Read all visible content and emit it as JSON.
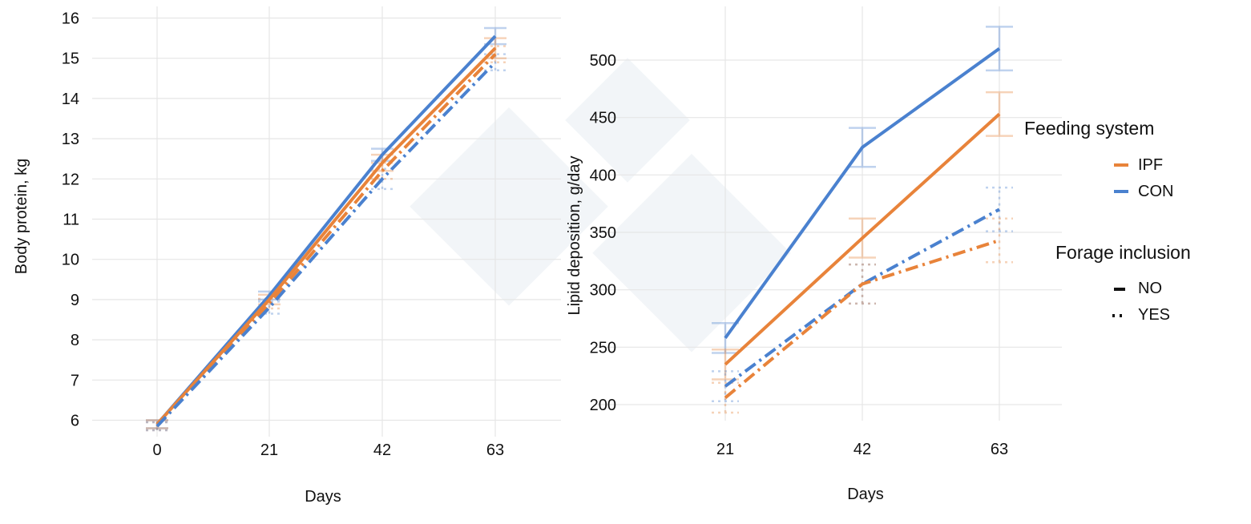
{
  "colors": {
    "IPF": "#e8833a",
    "CON": "#4a81cf",
    "grid": "#e6e6e6"
  },
  "chart_data": [
    {
      "type": "line",
      "xlabel": "Days",
      "ylabel": "Body protein, kg",
      "x": [
        0,
        21,
        42,
        63
      ],
      "x_ticks": [
        "0",
        "21",
        "42",
        "63"
      ],
      "y_ticks": [
        "6",
        "7",
        "8",
        "9",
        "10",
        "11",
        "12",
        "13",
        "14",
        "15",
        "16"
      ],
      "ylim": [
        6,
        16
      ],
      "grid": true,
      "series": [
        {
          "feeding": "CON",
          "forage": "NO",
          "values": [
            5.9,
            9.1,
            12.6,
            15.55
          ],
          "err": [
            0.1,
            0.1,
            0.15,
            0.2
          ]
        },
        {
          "feeding": "IPF",
          "forage": "NO",
          "values": [
            5.9,
            9.0,
            12.4,
            15.25
          ],
          "err": [
            0.1,
            0.12,
            0.2,
            0.25
          ]
        },
        {
          "feeding": "IPF",
          "forage": "YES",
          "values": [
            5.85,
            8.9,
            12.2,
            15.1
          ],
          "err": [
            0.1,
            0.12,
            0.2,
            0.2
          ]
        },
        {
          "feeding": "CON",
          "forage": "YES",
          "values": [
            5.85,
            8.8,
            12.0,
            14.9
          ],
          "err": [
            0.1,
            0.15,
            0.25,
            0.2
          ]
        }
      ]
    },
    {
      "type": "line",
      "xlabel": "Days",
      "ylabel": "Lipid deposition, g/day",
      "x": [
        21,
        42,
        63
      ],
      "x_ticks": [
        "21",
        "42",
        "63"
      ],
      "y_ticks": [
        "200",
        "250",
        "300",
        "350",
        "400",
        "450",
        "500"
      ],
      "ylim": [
        185,
        540
      ],
      "grid": true,
      "series": [
        {
          "feeding": "CON",
          "forage": "NO",
          "values": [
            258,
            424,
            510
          ],
          "err": [
            13,
            17,
            19
          ]
        },
        {
          "feeding": "IPF",
          "forage": "NO",
          "values": [
            235,
            345,
            453
          ],
          "err": [
            13,
            17,
            19
          ]
        },
        {
          "feeding": "CON",
          "forage": "YES",
          "values": [
            216,
            305,
            370
          ],
          "err": [
            13,
            17,
            19
          ]
        },
        {
          "feeding": "IPF",
          "forage": "YES",
          "values": [
            206,
            305,
            343
          ],
          "err": [
            13,
            17,
            19
          ]
        }
      ]
    }
  ],
  "legend": {
    "feeding_title": "Feeding system",
    "feeding_items": [
      {
        "label": "IPF",
        "key": "IPF"
      },
      {
        "label": "CON",
        "key": "CON"
      }
    ],
    "forage_title": "Forage inclusion",
    "forage_items": [
      {
        "label": "NO",
        "key": "NO"
      },
      {
        "label": "YES",
        "key": "YES"
      }
    ]
  }
}
